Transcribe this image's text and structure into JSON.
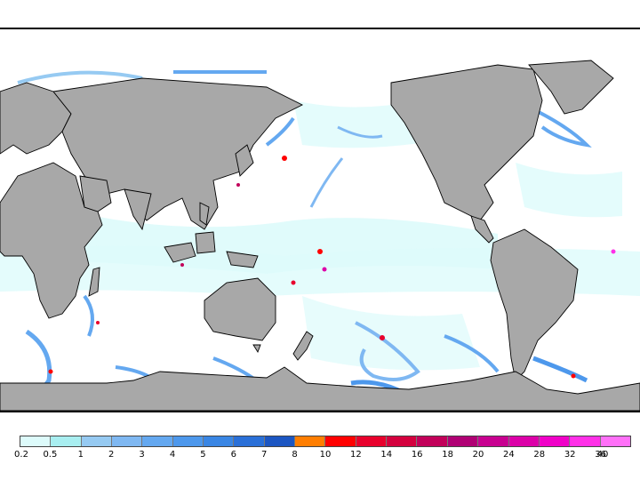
{
  "map": {
    "projection": "equirectangular",
    "center_longitude": 150,
    "background_ocean_color": "#ffffff",
    "land_color": "#a8a8a8",
    "border_color": "#000000"
  },
  "legend": {
    "type": "precipitation color scale",
    "colors": [
      "#ddfbfb",
      "#a8eef0",
      "#96caf2",
      "#7fb8f2",
      "#64a8f0",
      "#4d98ec",
      "#3a86e4",
      "#2a70d8",
      "#1c56c2",
      "#ff7e00",
      "#ff0000",
      "#e8002c",
      "#d4003e",
      "#c2005a",
      "#b00074",
      "#c80090",
      "#dc00a8",
      "#f000c8",
      "#ff30e8",
      "#ff70f8"
    ],
    "tick_labels": [
      "0.2",
      "0.5",
      "1",
      "2",
      "3",
      "4",
      "5",
      "6",
      "7",
      "8",
      "10",
      "12",
      "14",
      "16",
      "18",
      "20",
      "24",
      "28",
      "32",
      "36",
      "40"
    ]
  }
}
